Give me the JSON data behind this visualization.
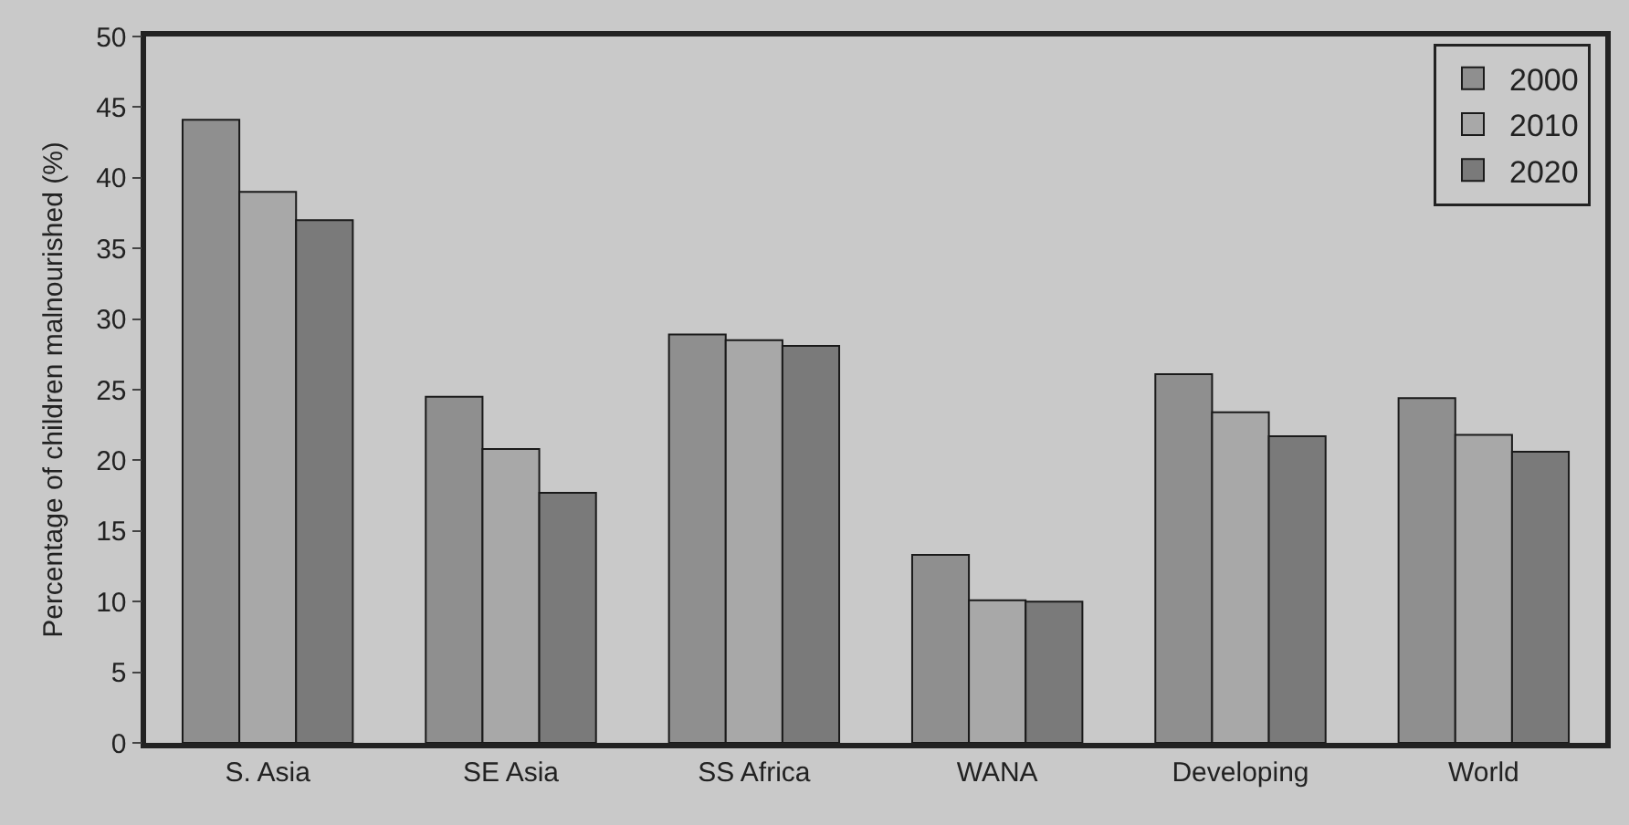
{
  "chart_data": {
    "type": "bar",
    "ylabel": "Percentage of children malnourished (%)",
    "categories": [
      "S. Asia",
      "SE Asia",
      "SS Africa",
      "WANA",
      "Developing",
      "World"
    ],
    "series": [
      {
        "name": "2000",
        "color": "#8f8f8f",
        "values": [
          44.1,
          24.5,
          28.9,
          13.3,
          26.1,
          24.4
        ]
      },
      {
        "name": "2010",
        "color": "#a8a8a8",
        "values": [
          39.0,
          20.8,
          28.5,
          10.1,
          23.4,
          21.8
        ]
      },
      {
        "name": "2020",
        "color": "#7a7a7a",
        "values": [
          37.0,
          17.7,
          28.1,
          10.0,
          21.7,
          20.6
        ]
      }
    ],
    "ylim": [
      0,
      50
    ],
    "yticks": [
      0,
      5,
      10,
      15,
      20,
      25,
      30,
      35,
      40,
      45,
      50
    ],
    "grid": false,
    "legend": "top right"
  }
}
